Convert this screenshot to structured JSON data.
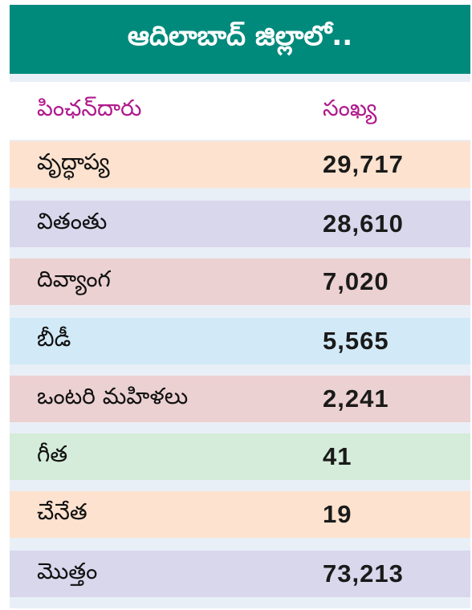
{
  "title": "ఆదిలాబాద్ జిల్లాలో..",
  "header": {
    "label": "పింఛన్‌దారు",
    "value": "సంఖ్య"
  },
  "rows": [
    {
      "label": "వృద్ధాప్య",
      "value": "29,717",
      "color": "#fde2cf"
    },
    {
      "label": "వితంతు",
      "value": "28,610",
      "color": "#d8d7ec"
    },
    {
      "label": "దివ్యాంగ",
      "value": "7,020",
      "color": "#ecd1d2"
    },
    {
      "label": "బీడీ",
      "value": "5,565",
      "color": "#d2eaf7"
    },
    {
      "label": "ఒంటరి మహిళలు",
      "value": "2,241",
      "color": "#ecd1d2"
    },
    {
      "label": "గీత",
      "value": "41",
      "color": "#d4ecd9"
    },
    {
      "label": "చేనేత",
      "value": "19",
      "color": "#fde2cf"
    },
    {
      "label": "మొత్తం",
      "value": "73,213",
      "color": "#d8d7ec"
    }
  ]
}
